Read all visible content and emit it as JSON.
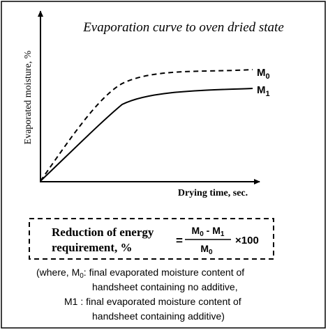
{
  "title": "Evaporation curve to oven dried state",
  "y_axis_label": "Evaporated moisture, %",
  "x_axis_label": "Drying time, sec.",
  "curve_labels": [
    {
      "letter": "M",
      "sub": "0"
    },
    {
      "letter": "M",
      "sub": "1"
    }
  ],
  "formula": {
    "lhs": [
      "Reduction of energy",
      "requirement, %"
    ],
    "equals": "=",
    "numerator": {
      "a": "M",
      "a_sub": "0",
      "minus": " - ",
      "b": "M",
      "b_sub": "1"
    },
    "denominator": {
      "letter": "M",
      "sub": "0"
    },
    "factor": "×100"
  },
  "notes": [
    {
      "pre": "(where, M",
      "sub": "0",
      "post": ": final evaporated moisture content of"
    },
    "handsheet containing no additive,",
    "M1 : final evaporated moisture content of",
    "handsheet containing additive)"
  ]
}
